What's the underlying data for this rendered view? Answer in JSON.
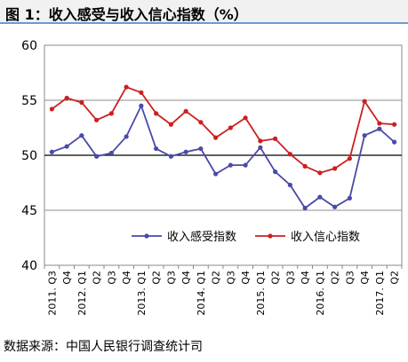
{
  "title": "图 1：收入感受与收入信心指数（%）",
  "source": "数据来源：中国人民银行调查统计司",
  "chart_data": {
    "type": "line",
    "title": "",
    "xlabel": "",
    "ylabel": "",
    "ylim": [
      40,
      60
    ],
    "yticks": [
      40,
      45,
      50,
      55,
      60
    ],
    "grid": true,
    "legend_position": "lower-left",
    "x": [
      "2011.Q3",
      "2011.Q4",
      "2012.Q1",
      "2012.Q2",
      "2012.Q3",
      "2012.Q4",
      "2013.Q1",
      "2013.Q2",
      "2013.Q3",
      "2013.Q4",
      "2014.Q1",
      "2014.Q2",
      "2014.Q3",
      "2014.Q4",
      "2015.Q1",
      "2015.Q2",
      "2015.Q3",
      "2015.Q4",
      "2016.Q1",
      "2016.Q2",
      "2016.Q3",
      "2016.Q4",
      "2017.Q1",
      "2017.Q2"
    ],
    "x_tick_labels": [
      "2011. Q3",
      "Q4",
      "2012. Q1",
      "Q2",
      "Q3",
      "Q4",
      "2013. Q1",
      "Q2",
      "Q3",
      "Q4",
      "2014. Q1",
      "Q2",
      "Q3",
      "Q4",
      "2015. Q1",
      "Q2",
      "Q3",
      "Q4",
      "2016. Q1",
      "Q2",
      "Q3",
      "Q4",
      "2017. Q1",
      "Q2"
    ],
    "series": [
      {
        "name": "收入感受指数",
        "color": "#4a4aa8",
        "values": [
          50.3,
          50.8,
          51.8,
          49.9,
          50.2,
          51.7,
          54.5,
          50.6,
          49.9,
          50.3,
          50.6,
          48.3,
          49.1,
          49.1,
          50.7,
          48.5,
          47.3,
          45.2,
          46.2,
          45.3,
          46.1,
          51.8,
          52.4,
          51.2
        ]
      },
      {
        "name": "收入信心指数",
        "color": "#cc1f1f",
        "values": [
          54.2,
          55.2,
          54.8,
          53.2,
          53.8,
          56.2,
          55.7,
          53.8,
          52.8,
          54.0,
          53.0,
          51.6,
          52.5,
          53.4,
          51.3,
          51.5,
          50.1,
          49.0,
          48.4,
          48.8,
          49.7,
          54.9,
          52.9,
          52.8
        ]
      }
    ]
  }
}
